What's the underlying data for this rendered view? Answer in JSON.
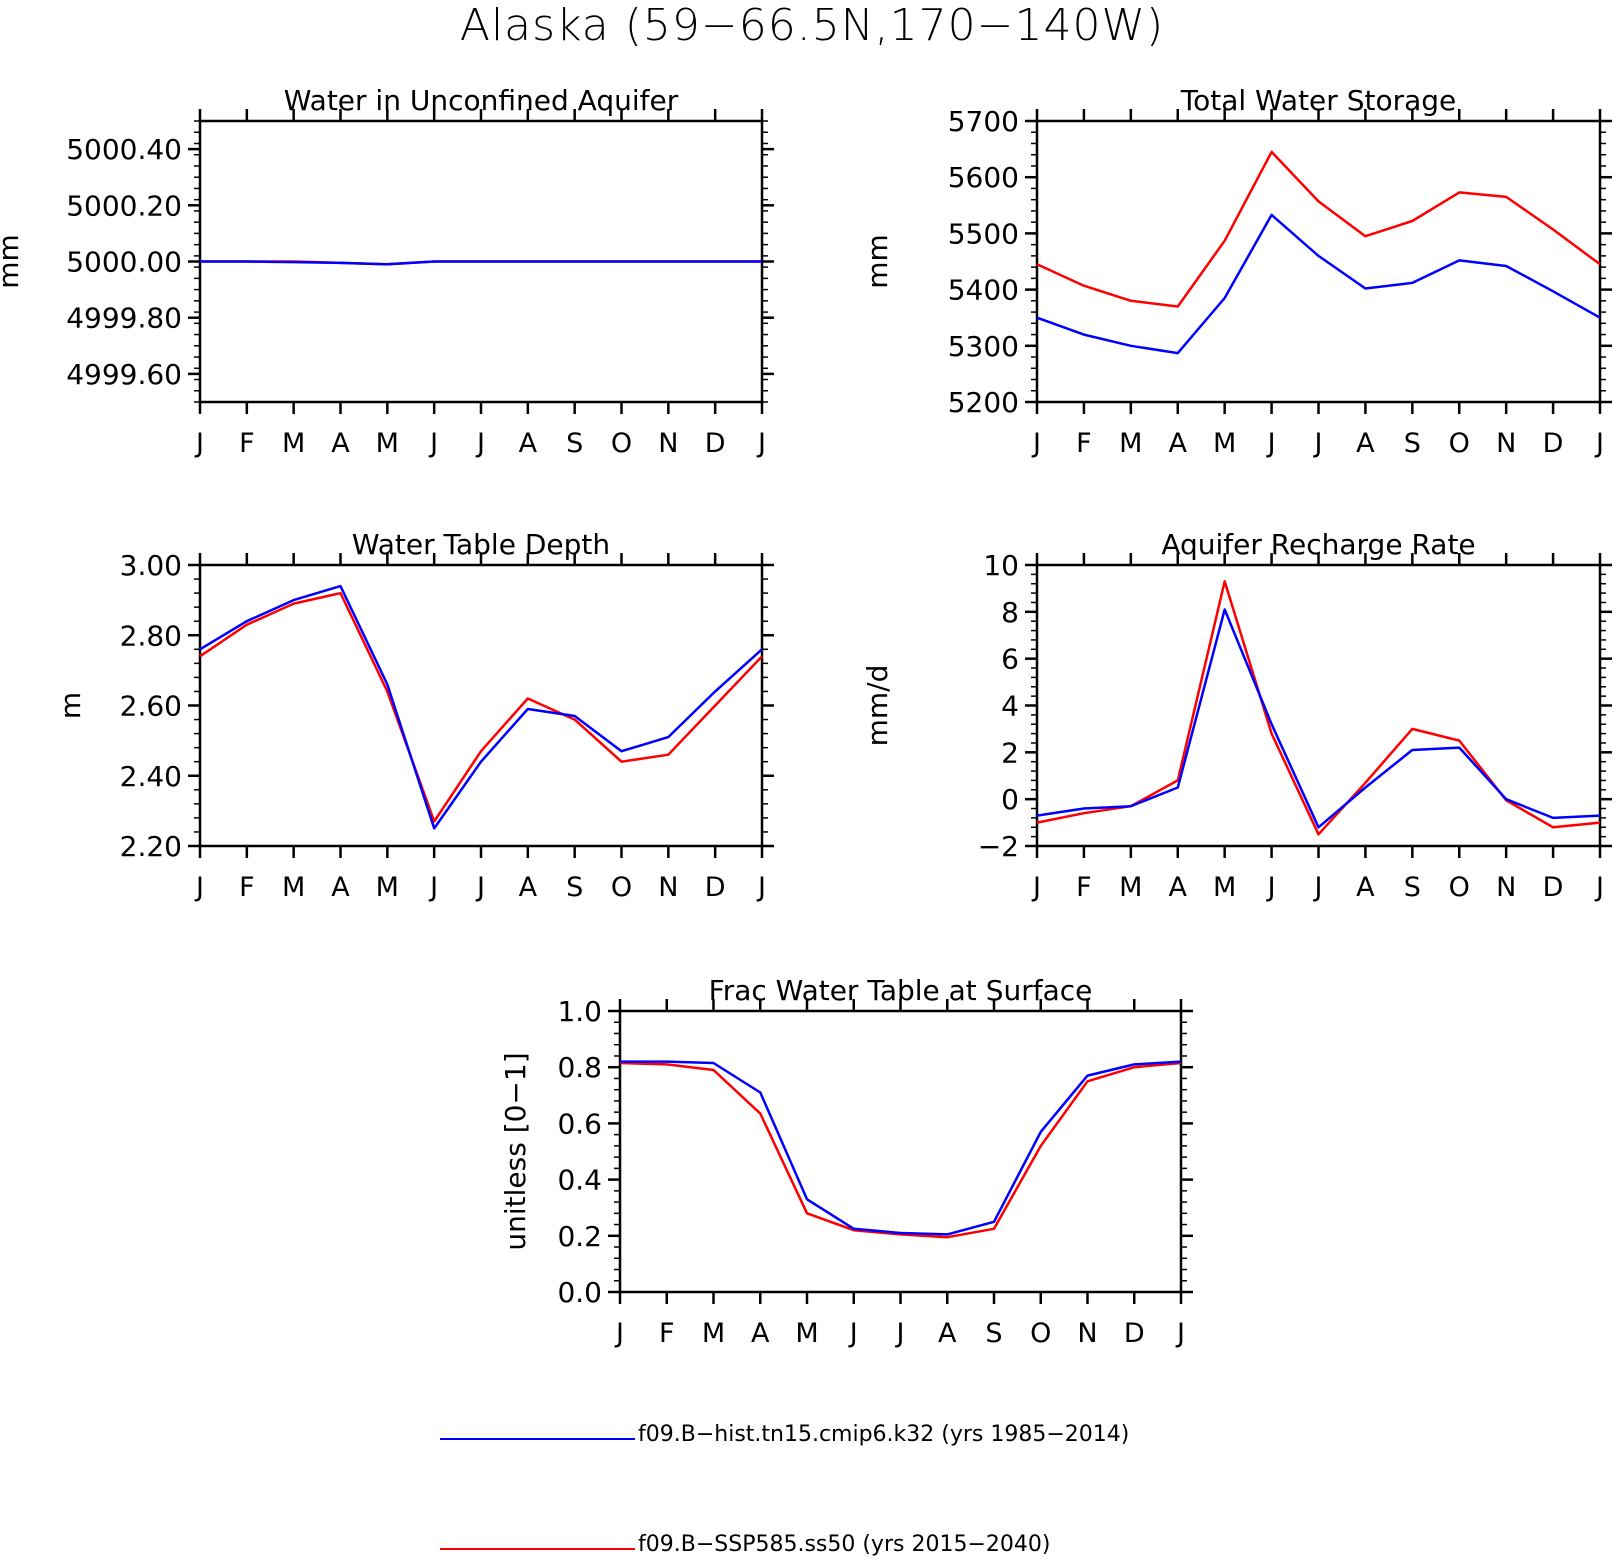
{
  "figure": {
    "title": "Alaska (59−66.5N,170−140W)"
  },
  "colors": {
    "hist": "#0000ff",
    "ssp": "#ff0000",
    "axes": "#000000"
  },
  "legend": [
    {
      "label": "f09.B−hist.tn15.cmip6.k32 (yrs 1985−2014)",
      "color": "#0000ff"
    },
    {
      "label": "f09.B−SSP585.ss50 (yrs 2015−2040)",
      "color": "#ff0000"
    }
  ],
  "chart_data": [
    {
      "type": "line",
      "title": "Water in Unconfined Aquifer",
      "ylabel": "mm",
      "xlabel": "",
      "categories": [
        "J",
        "F",
        "M",
        "A",
        "M",
        "J",
        "J",
        "A",
        "S",
        "O",
        "N",
        "D",
        "J"
      ],
      "ylim": [
        4999.5,
        5000.5
      ],
      "yticks": [
        4999.6,
        4999.8,
        5000.0,
        5000.2,
        5000.4
      ],
      "ytick_labels": [
        "4999.60",
        "4999.80",
        "5000.00",
        "5000.20",
        "5000.40"
      ],
      "series": [
        {
          "name": "f09.B−SSP585.ss50 (yrs 2015−2040)",
          "color": "#ff0000",
          "values": [
            5000.0,
            5000.0,
            5000.0,
            4999.995,
            4999.99,
            5000.0,
            5000.0,
            5000.0,
            5000.0,
            5000.0,
            5000.0,
            5000.0,
            5000.0
          ]
        },
        {
          "name": "f09.B−hist.tn15.cmip6.k32 (yrs 1985−2014)",
          "color": "#0000ff",
          "values": [
            5000.0,
            5000.0,
            4999.998,
            4999.995,
            4999.99,
            5000.0,
            5000.0,
            5000.0,
            5000.0,
            5000.0,
            5000.0,
            5000.0,
            5000.0
          ]
        }
      ]
    },
    {
      "type": "line",
      "title": "Total Water Storage",
      "ylabel": "mm",
      "xlabel": "",
      "categories": [
        "J",
        "F",
        "M",
        "A",
        "M",
        "J",
        "J",
        "A",
        "S",
        "O",
        "N",
        "D",
        "J"
      ],
      "ylim": [
        5200,
        5700
      ],
      "yticks": [
        5200,
        5300,
        5400,
        5500,
        5600,
        5700
      ],
      "ytick_labels": [
        "5200",
        "5300",
        "5400",
        "5500",
        "5600",
        "5700"
      ],
      "series": [
        {
          "name": "f09.B−SSP585.ss50 (yrs 2015−2040)",
          "color": "#ff0000",
          "values": [
            5445,
            5407,
            5380,
            5370,
            5487,
            5645,
            5557,
            5495,
            5522,
            5573,
            5565,
            5507,
            5445
          ]
        },
        {
          "name": "f09.B−hist.tn15.cmip6.k32 (yrs 1985−2014)",
          "color": "#0000ff",
          "values": [
            5350,
            5320,
            5300,
            5287,
            5385,
            5533,
            5460,
            5402,
            5412,
            5452,
            5442,
            5397,
            5350
          ]
        }
      ]
    },
    {
      "type": "line",
      "title": "Water Table Depth",
      "ylabel": "m",
      "xlabel": "",
      "categories": [
        "J",
        "F",
        "M",
        "A",
        "M",
        "J",
        "J",
        "A",
        "S",
        "O",
        "N",
        "D",
        "J"
      ],
      "ylim": [
        2.2,
        3.0
      ],
      "yticks": [
        2.2,
        2.4,
        2.6,
        2.8,
        3.0
      ],
      "ytick_labels": [
        "2.20",
        "2.40",
        "2.60",
        "2.80",
        "3.00"
      ],
      "series": [
        {
          "name": "f09.B−SSP585.ss50 (yrs 2015−2040)",
          "color": "#ff0000",
          "values": [
            2.74,
            2.83,
            2.89,
            2.92,
            2.64,
            2.27,
            2.47,
            2.62,
            2.56,
            2.44,
            2.46,
            2.6,
            2.74
          ]
        },
        {
          "name": "f09.B−hist.tn15.cmip6.k32 (yrs 1985−2014)",
          "color": "#0000ff",
          "values": [
            2.76,
            2.84,
            2.9,
            2.94,
            2.66,
            2.25,
            2.44,
            2.59,
            2.57,
            2.47,
            2.51,
            2.64,
            2.76
          ]
        }
      ]
    },
    {
      "type": "line",
      "title": "Aquifer Recharge Rate",
      "ylabel": "mm/d",
      "xlabel": "",
      "categories": [
        "J",
        "F",
        "M",
        "A",
        "M",
        "J",
        "J",
        "A",
        "S",
        "O",
        "N",
        "D",
        "J"
      ],
      "ylim": [
        -2,
        10
      ],
      "yticks": [
        -2,
        0,
        2,
        4,
        6,
        8,
        10
      ],
      "ytick_labels": [
        "−2",
        "0",
        "2",
        "4",
        "6",
        "8",
        "10"
      ],
      "series": [
        {
          "name": "f09.B−SSP585.ss50 (yrs 2015−2040)",
          "color": "#ff0000",
          "values": [
            -1.0,
            -0.6,
            -0.3,
            0.8,
            9.3,
            2.8,
            -1.5,
            0.7,
            3.0,
            2.5,
            -0.05,
            -1.2,
            -1.0
          ]
        },
        {
          "name": "f09.B−hist.tn15.cmip6.k32 (yrs 1985−2014)",
          "color": "#0000ff",
          "values": [
            -0.7,
            -0.4,
            -0.3,
            0.5,
            8.1,
            3.2,
            -1.2,
            0.5,
            2.1,
            2.2,
            0.0,
            -0.8,
            -0.7
          ]
        }
      ]
    },
    {
      "type": "line",
      "title": "Frac Water Table at Surface",
      "ylabel": "unitless [0−1]",
      "xlabel": "",
      "categories": [
        "J",
        "F",
        "M",
        "A",
        "M",
        "J",
        "J",
        "A",
        "S",
        "O",
        "N",
        "D",
        "J"
      ],
      "ylim": [
        0.0,
        1.0
      ],
      "yticks": [
        0.0,
        0.2,
        0.4,
        0.6,
        0.8,
        1.0
      ],
      "ytick_labels": [
        "0.0",
        "0.2",
        "0.4",
        "0.6",
        "0.8",
        "1.0"
      ],
      "series": [
        {
          "name": "f09.B−SSP585.ss50 (yrs 2015−2040)",
          "color": "#ff0000",
          "values": [
            0.815,
            0.81,
            0.79,
            0.635,
            0.28,
            0.22,
            0.205,
            0.195,
            0.225,
            0.52,
            0.75,
            0.8,
            0.815
          ]
        },
        {
          "name": "f09.B−hist.tn15.cmip6.k32 (yrs 1985−2014)",
          "color": "#0000ff",
          "values": [
            0.82,
            0.82,
            0.815,
            0.71,
            0.33,
            0.225,
            0.21,
            0.205,
            0.25,
            0.57,
            0.77,
            0.81,
            0.82
          ]
        }
      ]
    }
  ]
}
